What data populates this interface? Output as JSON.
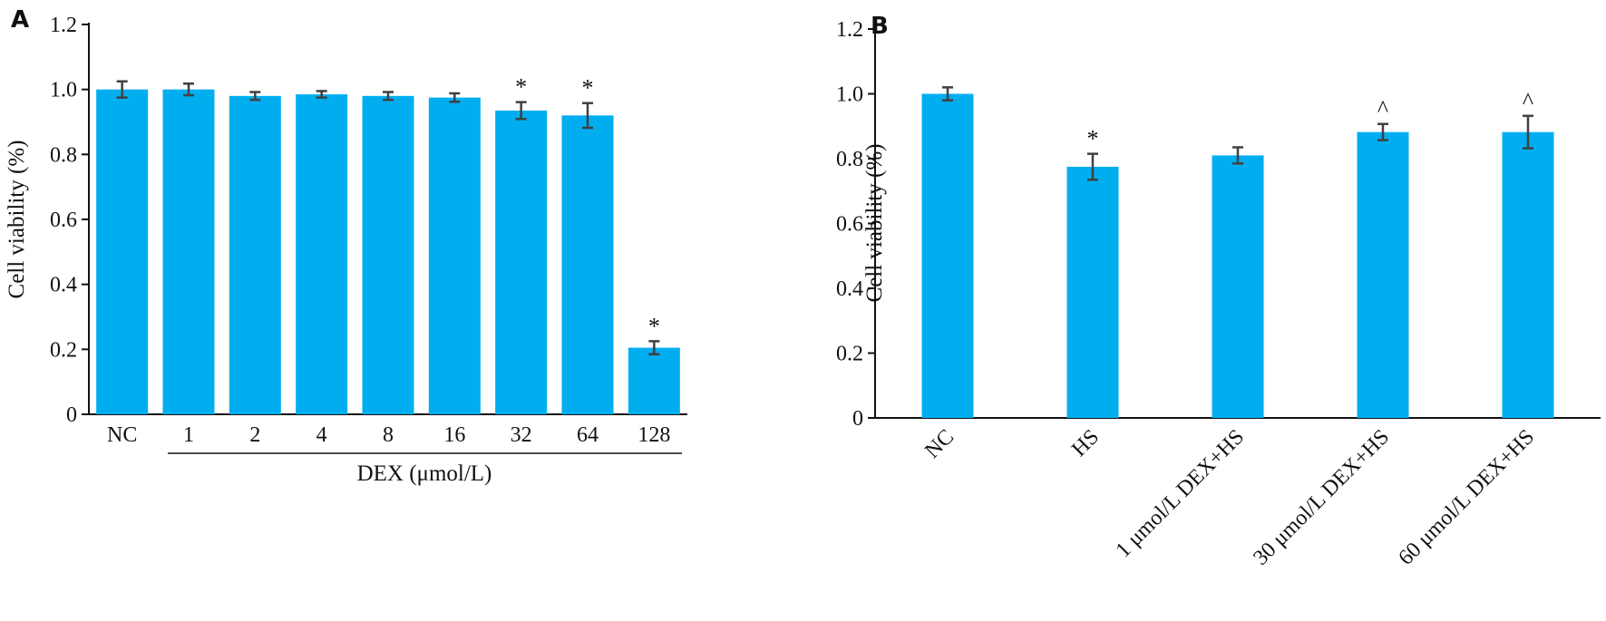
{
  "colors": {
    "bar": "#00AEEF",
    "axis": "#111111",
    "error_bar": "#404040"
  },
  "chart_data": [
    {
      "type": "bar",
      "panel": "A",
      "categories": [
        "NC",
        "1",
        "2",
        "4",
        "8",
        "16",
        "32",
        "64",
        "128"
      ],
      "values": [
        1.0,
        1.0,
        0.98,
        0.985,
        0.98,
        0.975,
        0.935,
        0.92,
        0.205
      ],
      "errors": [
        0.025,
        0.018,
        0.012,
        0.01,
        0.012,
        0.013,
        0.026,
        0.038,
        0.02
      ],
      "annotations": [
        "",
        "",
        "",
        "",
        "",
        "",
        "*",
        "*",
        "*"
      ],
      "ylabel": "Cell viability (%)",
      "xlabel": "DEX (μmol/L)",
      "ylim": [
        0,
        1.2
      ],
      "yticks": [
        "0",
        "0.2",
        "0.4",
        "0.6",
        "0.8",
        "1.0",
        "1.2"
      ],
      "grid": false
    },
    {
      "type": "bar",
      "panel": "B",
      "categories": [
        "NC",
        "HS",
        "1 μmol/L DEX+HS",
        "30 μmol/L DEX+HS",
        "60 μmol/L DEX+HS"
      ],
      "values": [
        1.0,
        0.775,
        0.81,
        0.882,
        0.882
      ],
      "errors": [
        0.02,
        0.04,
        0.025,
        0.025,
        0.05
      ],
      "annotations": [
        "",
        "*",
        "",
        "^",
        "^"
      ],
      "ylabel": "Cell viability (%)",
      "xlabel": "",
      "ylim": [
        0,
        1.2
      ],
      "yticks": [
        "0",
        "0.2",
        "0.4",
        "0.6",
        "0.8",
        "1.0",
        "1.2"
      ],
      "grid": false
    }
  ]
}
